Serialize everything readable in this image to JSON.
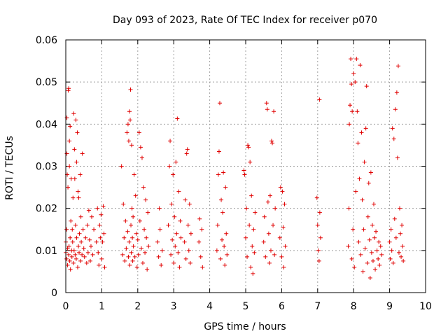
{
  "chart_data": {
    "type": "scatter",
    "title": "Day 093 of 2023, Rate Of TEC Index for receiver p070",
    "xlabel": "GPS time / hours",
    "ylabel": "ROTI / TECUs",
    "xlim": [
      0,
      10
    ],
    "ylim": [
      0,
      0.06
    ],
    "xticks": [
      0,
      1,
      2,
      3,
      4,
      5,
      6,
      7,
      8,
      9,
      10
    ],
    "xtick_labels": [
      "0",
      "1",
      "2",
      "3",
      "4",
      "5",
      "6",
      "7",
      "8",
      "9",
      "10"
    ],
    "yticks": [
      0,
      0.01,
      0.02,
      0.03,
      0.04,
      0.05,
      0.06
    ],
    "ytick_labels": [
      "0",
      "0.01",
      "0.02",
      "0.03",
      "0.04",
      "0.05",
      "0.06"
    ],
    "grid": true,
    "marker": "+",
    "color": "#e00000",
    "series": [
      {
        "name": "ROTI",
        "points": [
          [
            0.0,
            0.0095
          ],
          [
            0.0,
            0.012
          ],
          [
            0.02,
            0.008
          ],
          [
            0.02,
            0.015
          ],
          [
            0.03,
            0.0415
          ],
          [
            0.03,
            0.033
          ],
          [
            0.04,
            0.028
          ],
          [
            0.05,
            0.0105
          ],
          [
            0.05,
            0.0065
          ],
          [
            0.06,
            0.025
          ],
          [
            0.07,
            0.048
          ],
          [
            0.08,
            0.0485
          ],
          [
            0.08,
            0.009
          ],
          [
            0.09,
            0.011
          ],
          [
            0.1,
            0.03
          ],
          [
            0.1,
            0.036
          ],
          [
            0.11,
            0.0075
          ],
          [
            0.12,
            0.0395
          ],
          [
            0.12,
            0.013
          ],
          [
            0.13,
            0.0055
          ],
          [
            0.14,
            0.017
          ],
          [
            0.15,
            0.027
          ],
          [
            0.16,
            0.01
          ],
          [
            0.17,
            0.0085
          ],
          [
            0.18,
            0.015
          ],
          [
            0.19,
            0.012
          ],
          [
            0.2,
            0.0225
          ],
          [
            0.21,
            0.007
          ],
          [
            0.22,
            0.0425
          ],
          [
            0.23,
            0.01
          ],
          [
            0.24,
            0.034
          ],
          [
            0.25,
            0.027
          ],
          [
            0.26,
            0.009
          ],
          [
            0.27,
            0.016
          ],
          [
            0.28,
            0.041
          ],
          [
            0.29,
            0.008
          ],
          [
            0.3,
            0.031
          ],
          [
            0.3,
            0.013
          ],
          [
            0.32,
            0.038
          ],
          [
            0.33,
            0.006
          ],
          [
            0.34,
            0.024
          ],
          [
            0.35,
            0.011
          ],
          [
            0.36,
            0.0225
          ],
          [
            0.37,
            0.0095
          ],
          [
            0.38,
            0.014
          ],
          [
            0.4,
            0.028
          ],
          [
            0.41,
            0.0075
          ],
          [
            0.42,
            0.018
          ],
          [
            0.43,
            0.012
          ],
          [
            0.45,
            0.009
          ],
          [
            0.46,
            0.033
          ],
          [
            0.48,
            0.015
          ],
          [
            0.5,
            0.0105
          ],
          [
            0.52,
            0.0085
          ],
          [
            0.55,
            0.013
          ],
          [
            0.58,
            0.007
          ],
          [
            0.6,
            0.016
          ],
          [
            0.62,
            0.0095
          ],
          [
            0.64,
            0.0195
          ],
          [
            0.66,
            0.0125
          ],
          [
            0.68,
            0.0075
          ],
          [
            0.7,
            0.011
          ],
          [
            0.72,
            0.018
          ],
          [
            0.75,
            0.009
          ],
          [
            0.78,
            0.015
          ],
          [
            0.85,
            0.012
          ],
          [
            0.88,
            0.02
          ],
          [
            0.9,
            0.0095
          ],
          [
            0.92,
            0.0065
          ],
          [
            0.94,
            0.016
          ],
          [
            0.96,
            0.013
          ],
          [
            0.98,
            0.0185
          ],
          [
            1.0,
            0.008
          ],
          [
            1.02,
            0.012
          ],
          [
            1.04,
            0.0205
          ],
          [
            1.06,
            0.014
          ],
          [
            1.08,
            0.006
          ],
          [
            1.55,
            0.03
          ],
          [
            1.58,
            0.009
          ],
          [
            1.6,
            0.021
          ],
          [
            1.62,
            0.013
          ],
          [
            1.64,
            0.0075
          ],
          [
            1.66,
            0.017
          ],
          [
            1.68,
            0.0105
          ],
          [
            1.7,
            0.038
          ],
          [
            1.72,
            0.0145
          ],
          [
            1.73,
            0.04
          ],
          [
            1.74,
            0.0085
          ],
          [
            1.75,
            0.036
          ],
          [
            1.76,
            0.012
          ],
          [
            1.77,
            0.043
          ],
          [
            1.78,
            0.0065
          ],
          [
            1.79,
            0.041
          ],
          [
            1.8,
            0.0482
          ],
          [
            1.81,
            0.016
          ],
          [
            1.82,
            0.0095
          ],
          [
            1.83,
            0.035
          ],
          [
            1.84,
            0.02
          ],
          [
            1.85,
            0.013
          ],
          [
            1.86,
            0.0075
          ],
          [
            1.87,
            0.018
          ],
          [
            1.88,
            0.011
          ],
          [
            1.9,
            0.028
          ],
          [
            1.92,
            0.0085
          ],
          [
            1.94,
            0.023
          ],
          [
            1.96,
            0.014
          ],
          [
            1.98,
            0.006
          ],
          [
            2.0,
            0.0125
          ],
          [
            2.02,
            0.009
          ],
          [
            2.04,
            0.038
          ],
          [
            2.06,
            0.017
          ],
          [
            2.08,
            0.0345
          ],
          [
            2.1,
            0.0105
          ],
          [
            2.12,
            0.032
          ],
          [
            2.14,
            0.007
          ],
          [
            2.16,
            0.025
          ],
          [
            2.18,
            0.015
          ],
          [
            2.2,
            0.0095
          ],
          [
            2.22,
            0.022
          ],
          [
            2.24,
            0.013
          ],
          [
            2.26,
            0.0055
          ],
          [
            2.28,
            0.019
          ],
          [
            2.3,
            0.011
          ],
          [
            2.55,
            0.012
          ],
          [
            2.58,
            0.0085
          ],
          [
            2.6,
            0.02
          ],
          [
            2.62,
            0.015
          ],
          [
            2.65,
            0.0065
          ],
          [
            2.68,
            0.01
          ],
          [
            2.85,
            0.016
          ],
          [
            2.88,
            0.03
          ],
          [
            2.9,
            0.036
          ],
          [
            2.92,
            0.009
          ],
          [
            2.94,
            0.021
          ],
          [
            2.96,
            0.0125
          ],
          [
            2.98,
            0.028
          ],
          [
            3.0,
            0.007
          ],
          [
            3.02,
            0.018
          ],
          [
            3.04,
            0.011
          ],
          [
            3.06,
            0.031
          ],
          [
            3.08,
            0.014
          ],
          [
            3.1,
            0.0413
          ],
          [
            3.12,
            0.0095
          ],
          [
            3.14,
            0.024
          ],
          [
            3.16,
            0.006
          ],
          [
            3.18,
            0.017
          ],
          [
            3.2,
            0.013
          ],
          [
            3.3,
            0.012
          ],
          [
            3.32,
            0.022
          ],
          [
            3.34,
            0.008
          ],
          [
            3.36,
            0.033
          ],
          [
            3.38,
            0.034
          ],
          [
            3.4,
            0.016
          ],
          [
            3.42,
            0.01
          ],
          [
            3.44,
            0.021
          ],
          [
            3.46,
            0.007
          ],
          [
            3.48,
            0.014
          ],
          [
            3.7,
            0.012
          ],
          [
            3.72,
            0.0175
          ],
          [
            3.75,
            0.0085
          ],
          [
            3.78,
            0.015
          ],
          [
            3.8,
            0.006
          ],
          [
            4.2,
            0.01
          ],
          [
            4.22,
            0.016
          ],
          [
            4.24,
            0.028
          ],
          [
            4.26,
            0.0335
          ],
          [
            4.28,
            0.045
          ],
          [
            4.3,
            0.008
          ],
          [
            4.32,
            0.022
          ],
          [
            4.34,
            0.0125
          ],
          [
            4.36,
            0.019
          ],
          [
            4.38,
            0.0285
          ],
          [
            4.4,
            0.011
          ],
          [
            4.42,
            0.0065
          ],
          [
            4.44,
            0.025
          ],
          [
            4.46,
            0.014
          ],
          [
            4.48,
            0.009
          ],
          [
            4.95,
            0.029
          ],
          [
            4.97,
            0.028
          ],
          [
            5.0,
            0.013
          ],
          [
            5.02,
            0.02
          ],
          [
            5.04,
            0.0085
          ],
          [
            5.06,
            0.035
          ],
          [
            5.08,
            0.0345
          ],
          [
            5.1,
            0.016
          ],
          [
            5.12,
            0.031
          ],
          [
            5.14,
            0.006
          ],
          [
            5.16,
            0.023
          ],
          [
            5.18,
            0.011
          ],
          [
            5.2,
            0.0045
          ],
          [
            5.22,
            0.015
          ],
          [
            5.24,
            0.0095
          ],
          [
            5.26,
            0.019
          ],
          [
            5.5,
            0.012
          ],
          [
            5.52,
            0.018
          ],
          [
            5.55,
            0.0085
          ],
          [
            5.58,
            0.045
          ],
          [
            5.6,
            0.0435
          ],
          [
            5.62,
            0.0215
          ],
          [
            5.64,
            0.014
          ],
          [
            5.66,
            0.007
          ],
          [
            5.68,
            0.023
          ],
          [
            5.7,
            0.01
          ],
          [
            5.72,
            0.036
          ],
          [
            5.74,
            0.0355
          ],
          [
            5.76,
            0.016
          ],
          [
            5.78,
            0.043
          ],
          [
            5.8,
            0.009
          ],
          [
            5.82,
            0.02
          ],
          [
            5.95,
            0.013
          ],
          [
            5.97,
            0.025
          ],
          [
            6.0,
            0.0085
          ],
          [
            6.02,
            0.024
          ],
          [
            6.04,
            0.0155
          ],
          [
            6.06,
            0.006
          ],
          [
            6.08,
            0.021
          ],
          [
            6.1,
            0.011
          ],
          [
            6.98,
            0.0225
          ],
          [
            7.0,
            0.016
          ],
          [
            7.02,
            0.01
          ],
          [
            7.04,
            0.0075
          ],
          [
            7.05,
            0.0458
          ],
          [
            7.06,
            0.019
          ],
          [
            7.08,
            0.013
          ],
          [
            7.85,
            0.011
          ],
          [
            7.87,
            0.02
          ],
          [
            7.88,
            0.04
          ],
          [
            7.9,
            0.0445
          ],
          [
            7.92,
            0.0555
          ],
          [
            7.94,
            0.0495
          ],
          [
            7.95,
            0.008
          ],
          [
            7.96,
            0.043
          ],
          [
            7.98,
            0.015
          ],
          [
            8.0,
            0.052
          ],
          [
            8.02,
            0.006
          ],
          [
            8.04,
            0.05
          ],
          [
            8.06,
            0.024
          ],
          [
            8.08,
            0.0555
          ],
          [
            8.1,
            0.043
          ],
          [
            8.12,
            0.0355
          ],
          [
            8.14,
            0.012
          ],
          [
            8.16,
            0.027
          ],
          [
            8.18,
            0.054
          ],
          [
            8.2,
            0.009
          ],
          [
            8.22,
            0.038
          ],
          [
            8.24,
            0.022
          ],
          [
            8.26,
            0.005
          ],
          [
            8.28,
            0.015
          ],
          [
            8.3,
            0.031
          ],
          [
            8.32,
            0.0105
          ],
          [
            8.34,
            0.039
          ],
          [
            8.36,
            0.049
          ],
          [
            8.38,
            0.007
          ],
          [
            8.4,
            0.018
          ],
          [
            8.42,
            0.026
          ],
          [
            8.44,
            0.0125
          ],
          [
            8.46,
            0.0035
          ],
          [
            8.48,
            0.0285
          ],
          [
            8.5,
            0.0095
          ],
          [
            8.52,
            0.016
          ],
          [
            8.54,
            0.0075
          ],
          [
            8.56,
            0.021
          ],
          [
            8.58,
            0.013
          ],
          [
            8.6,
            0.0055
          ],
          [
            8.62,
            0.0145
          ],
          [
            8.65,
            0.01
          ],
          [
            8.68,
            0.008
          ],
          [
            8.7,
            0.012
          ],
          [
            8.72,
            0.0065
          ],
          [
            8.75,
            0.011
          ],
          [
            8.78,
            0.009
          ],
          [
            9.0,
            0.012
          ],
          [
            9.02,
            0.008
          ],
          [
            9.04,
            0.015
          ],
          [
            9.06,
            0.01
          ],
          [
            9.08,
            0.039
          ],
          [
            9.1,
            0.007
          ],
          [
            9.12,
            0.0365
          ],
          [
            9.14,
            0.0175
          ],
          [
            9.16,
            0.0435
          ],
          [
            9.18,
            0.013
          ],
          [
            9.2,
            0.0475
          ],
          [
            9.22,
            0.032
          ],
          [
            9.24,
            0.0538
          ],
          [
            9.26,
            0.0095
          ],
          [
            9.28,
            0.02
          ],
          [
            9.3,
            0.014
          ],
          [
            9.32,
            0.0085
          ],
          [
            9.34,
            0.016
          ],
          [
            9.36,
            0.011
          ],
          [
            9.38,
            0.0075
          ]
        ]
      }
    ]
  }
}
